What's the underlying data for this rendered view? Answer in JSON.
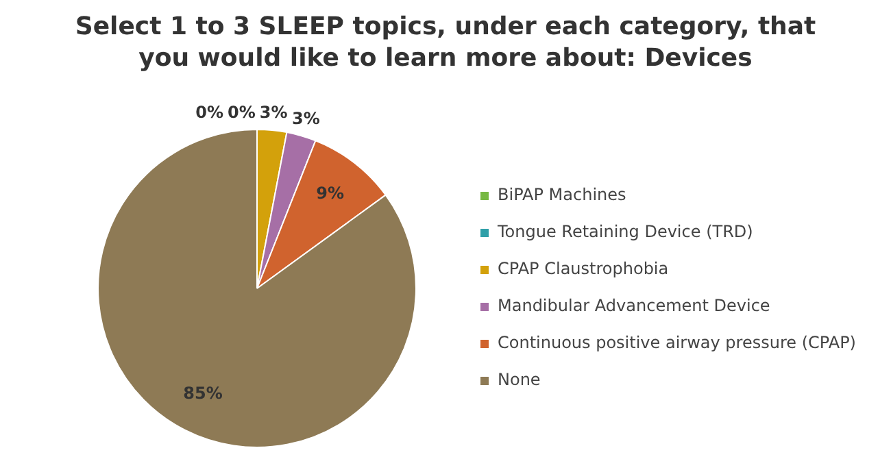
{
  "chart_data": {
    "type": "pie",
    "title": "Select 1 to 3 SLEEP topics, under each category, that you would like to learn more about: Devices",
    "categories": [
      "BiPAP Machines",
      "Tongue Retaining Device (TRD)",
      "CPAP Claustrophobia",
      "Mandibular Advancement Device",
      "Continuous positive airway pressure (CPAP)",
      "None"
    ],
    "values": [
      0,
      0,
      3,
      3,
      9,
      85
    ],
    "value_labels": [
      "0%",
      "0%",
      "3%",
      "3%",
      "9%",
      "85%"
    ],
    "colors": [
      "#77b843",
      "#2f9fa8",
      "#d3a10b",
      "#a66fa6",
      "#d0632e",
      "#8e7a55"
    ],
    "legend": "right"
  }
}
